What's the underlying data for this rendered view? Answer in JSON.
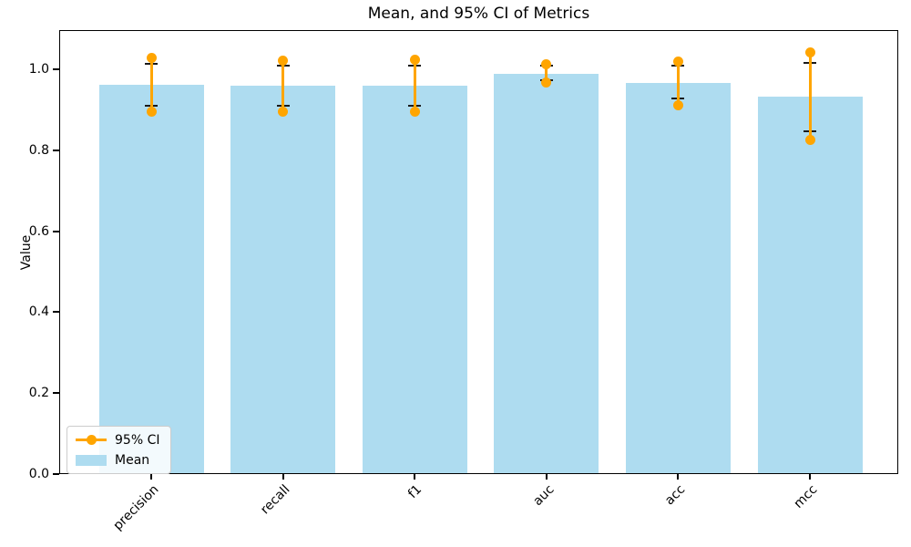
{
  "figure": {
    "title": "Mean, and 95% CI of Metrics",
    "ylabel": "Value",
    "background": "#ffffff",
    "spine_color": "#000000"
  },
  "colors": {
    "bar": "#AEDCF0",
    "errorbar": "#FFA500",
    "cap": "#1a1a1a"
  },
  "legend": {
    "position": "lower left",
    "items": [
      {
        "label": "95% CI",
        "marker": "errorbar-line-with-dot",
        "color": "#FFA500"
      },
      {
        "label": "Mean",
        "marker": "patch",
        "color": "#AEDCF0"
      }
    ]
  },
  "chart_data": {
    "type": "bar",
    "title": "Mean, and 95% CI of Metrics",
    "xlabel": "",
    "ylabel": "Value",
    "categories": [
      "precision",
      "recall",
      "f1",
      "auc",
      "acc",
      "mcc"
    ],
    "series": [
      {
        "name": "Mean",
        "type": "bar",
        "color": "#AEDCF0",
        "values": [
          0.961,
          0.959,
          0.959,
          0.988,
          0.967,
          0.932
        ]
      },
      {
        "name": "95% CI",
        "type": "errorbar",
        "color": "#FFA500",
        "ci_low": [
          0.896,
          0.895,
          0.896,
          0.968,
          0.912,
          0.826
        ],
        "ci_high": [
          1.028,
          1.022,
          1.023,
          1.012,
          1.019,
          1.041
        ],
        "cap_low": [
          0.911,
          0.911,
          0.911,
          0.972,
          0.927,
          0.847
        ],
        "cap_high": [
          1.014,
          1.01,
          1.01,
          1.01,
          1.01,
          1.016
        ]
      }
    ],
    "yticks": [
      0.0,
      0.2,
      0.4,
      0.6,
      0.8,
      1.0
    ],
    "yticklabels": [
      "0.0",
      "0.2",
      "0.4",
      "0.6",
      "0.8",
      "1.0"
    ],
    "ylim": [
      0,
      1.097
    ],
    "xticklabel_rotation": 45,
    "grid": false,
    "legend_position": "lower left"
  }
}
